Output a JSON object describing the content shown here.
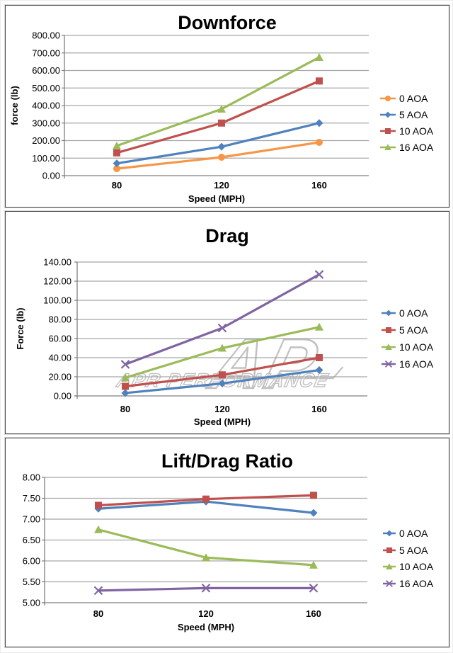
{
  "watermark": {
    "text": "APR PERFORMANCE"
  },
  "palette": {
    "blue": "#4F81BD",
    "red": "#C0504D",
    "green": "#9BBB59",
    "purple": "#8064A2",
    "orange": "#F79646",
    "gridline": "#A6A6A6",
    "axis": "#7F7F7F",
    "text": "#000000",
    "watermark_gray": "#A0A0A0"
  },
  "chart_data": [
    {
      "type": "line",
      "id": "downforce",
      "title": "Downforce",
      "xlabel": "Speed (MPH)",
      "ylabel": "force (lb)",
      "categories": [
        "80",
        "120",
        "160"
      ],
      "ylim": [
        0,
        800
      ],
      "ytick_step": 100,
      "ytick_decimals": 2,
      "grid": true,
      "legend_position": "right",
      "series": [
        {
          "name": "0 AOA",
          "color": "#F79646",
          "marker": "circle",
          "values": [
            40,
            105,
            190
          ]
        },
        {
          "name": "5 AOA",
          "color": "#4F81BD",
          "marker": "diamond",
          "values": [
            70,
            165,
            300
          ]
        },
        {
          "name": "10 AOA",
          "color": "#C0504D",
          "marker": "square",
          "values": [
            130,
            300,
            540
          ]
        },
        {
          "name": "16 AOA",
          "color": "#9BBB59",
          "marker": "triangle",
          "values": [
            170,
            380,
            675
          ]
        }
      ]
    },
    {
      "type": "line",
      "id": "drag",
      "title": "Drag",
      "xlabel": "Speed (MPH)",
      "ylabel": "Force (lb)",
      "categories": [
        "80",
        "120",
        "160"
      ],
      "ylim": [
        0,
        140
      ],
      "ytick_step": 20,
      "ytick_decimals": 2,
      "grid": true,
      "legend_position": "right",
      "watermark": "APR PERFORMANCE",
      "series": [
        {
          "name": "0 AOA",
          "color": "#4F81BD",
          "marker": "diamond",
          "values": [
            3,
            13,
            27
          ]
        },
        {
          "name": "5 AOA",
          "color": "#C0504D",
          "marker": "square",
          "values": [
            10,
            22,
            40
          ]
        },
        {
          "name": "10 AOA",
          "color": "#9BBB59",
          "marker": "triangle",
          "values": [
            19,
            50,
            72
          ]
        },
        {
          "name": "16 AOA",
          "color": "#8064A2",
          "marker": "x",
          "values": [
            33,
            71,
            127
          ]
        }
      ]
    },
    {
      "type": "line",
      "id": "lift-drag-ratio",
      "title": "Lift/Drag Ratio",
      "xlabel": "Speed (MPH)",
      "ylabel": "",
      "categories": [
        "80",
        "120",
        "160"
      ],
      "ylim": [
        5,
        8
      ],
      "ytick_step": 0.5,
      "ytick_decimals": 2,
      "grid": true,
      "legend_position": "right",
      "series": [
        {
          "name": "0 AOA",
          "color": "#4F81BD",
          "marker": "diamond",
          "values": [
            7.25,
            7.42,
            7.15
          ]
        },
        {
          "name": "5 AOA",
          "color": "#C0504D",
          "marker": "square",
          "values": [
            7.33,
            7.48,
            7.57
          ]
        },
        {
          "name": "10 AOA",
          "color": "#9BBB59",
          "marker": "triangle",
          "values": [
            6.75,
            6.08,
            5.9
          ]
        },
        {
          "name": "16 AOA",
          "color": "#8064A2",
          "marker": "x",
          "values": [
            5.29,
            5.35,
            5.35
          ]
        }
      ]
    }
  ]
}
